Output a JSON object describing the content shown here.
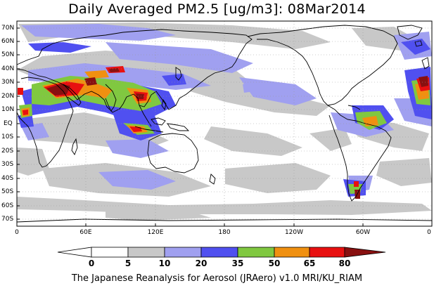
{
  "title": "Daily Averaged PM2.5 [ug/m3]: 08Mar2014",
  "footer": "The Japanese Reanalysis for Aerosol (JRAero) v1.0 MRI/KU_RIAM",
  "lat_labels": [
    "70N",
    "60N",
    "50N",
    "40N",
    "30N",
    "20N",
    "10N",
    "EQ",
    "10S",
    "20S",
    "30S",
    "40S",
    "50S",
    "60S",
    "70S"
  ],
  "lon_labels": [
    "0",
    "60E",
    "120E",
    "180",
    "120W",
    "60W",
    "0"
  ],
  "colorbar": {
    "labels": [
      "0",
      "5",
      "10",
      "20",
      "35",
      "50",
      "65",
      "80"
    ],
    "colors": [
      "#ffffff",
      "#c8c8c8",
      "#a0a0f0",
      "#5050f0",
      "#80c840",
      "#f09010",
      "#e81010",
      "#881010"
    ]
  },
  "map_colors": {
    "ocean": "#ffffff",
    "coast": "#000000",
    "grid": "#9a9a9a"
  }
}
